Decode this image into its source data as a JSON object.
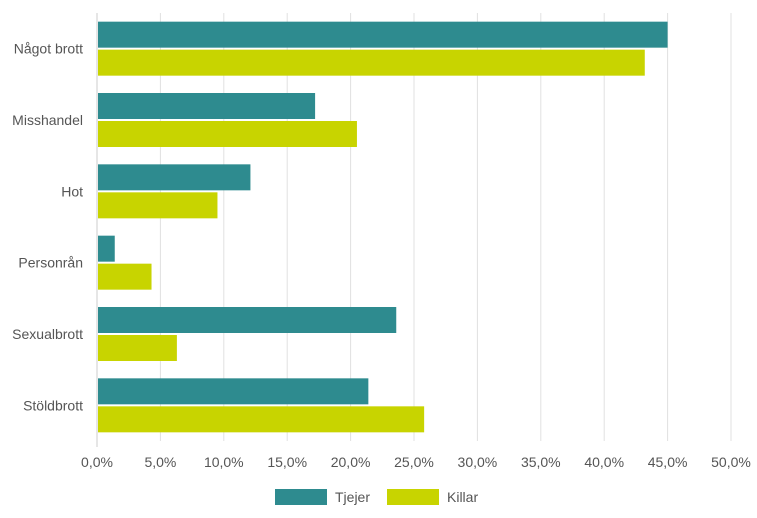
{
  "chart_data": {
    "type": "bar",
    "orientation": "horizontal",
    "categories": [
      "Något brott",
      "Misshandel",
      "Hot",
      "Personrån",
      "Sexualbrott",
      "Stöldbrott"
    ],
    "series": [
      {
        "name": "Tjejer",
        "color": "#2e8b8f",
        "values": [
          45.0,
          17.2,
          12.1,
          1.4,
          23.6,
          21.4
        ]
      },
      {
        "name": "Killar",
        "color": "#c8d400",
        "values": [
          43.2,
          20.5,
          9.5,
          4.3,
          6.3,
          25.8
        ]
      }
    ],
    "xlim": [
      0,
      50
    ],
    "xticks": [
      0,
      5,
      10,
      15,
      20,
      25,
      30,
      35,
      40,
      45,
      50
    ],
    "xtick_labels": [
      "0,0%",
      "5,0%",
      "10,0%",
      "15,0%",
      "20,0%",
      "25,0%",
      "30,0%",
      "35,0%",
      "40,0%",
      "45,0%",
      "50,0%"
    ],
    "grid": true,
    "legend_position": "bottom-center"
  }
}
